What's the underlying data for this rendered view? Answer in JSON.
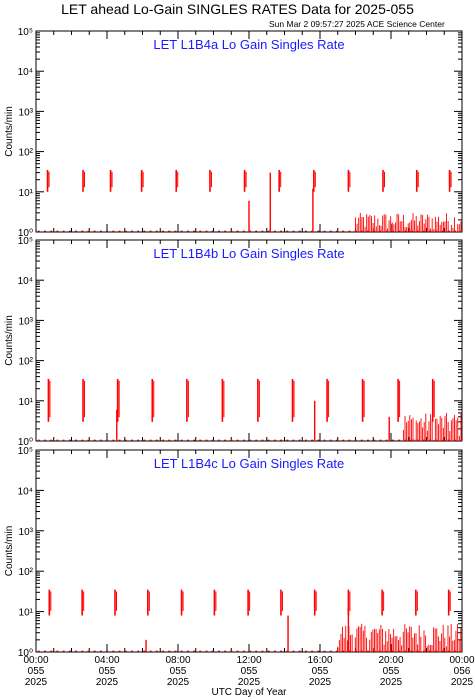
{
  "header": {
    "title": "LET ahead Lo-Gain SINGLES RATES Data for 2025-055",
    "timestamp": "Sun Mar  2 09:57:27 2025 ACE Science Center"
  },
  "colors": {
    "axis": "#000000",
    "data": "#ff0000",
    "label": "#1a1aff"
  },
  "chart_data": [
    {
      "type": "bar",
      "title": "LET L1B4a Lo Gain Singles Rate",
      "ylabel": "Counts/min",
      "yscale": "log",
      "ylim": [
        1,
        100000
      ],
      "yticks": [
        "10⁰",
        "10¹",
        "10²",
        "10³",
        "10⁴",
        "10⁵"
      ],
      "pulses": {
        "hours": [
          0.65,
          2.65,
          4.2,
          5.95,
          7.9,
          9.8,
          11.75,
          13.7,
          15.65,
          17.6,
          19.55,
          21.45,
          23.3
        ],
        "peak": 35,
        "base": 10
      },
      "spikes": [
        {
          "hour": 12.0,
          "value": 6
        },
        {
          "hour": 13.2,
          "value": 30
        },
        {
          "hour": 15.6,
          "value": 12
        }
      ],
      "noise_from_hour": 18.0,
      "noise_max": 3
    },
    {
      "type": "bar",
      "title": "LET L1B4b Lo Gain Singles Rate",
      "ylabel": "Counts/min",
      "yscale": "log",
      "ylim": [
        1,
        100000
      ],
      "yticks": [
        "10⁰",
        "10¹",
        "10²",
        "10³",
        "10⁴",
        "10⁵"
      ],
      "pulses": {
        "hours": [
          0.7,
          2.65,
          4.6,
          6.55,
          8.5,
          10.5,
          12.5,
          14.45,
          16.4,
          18.4,
          20.4,
          22.35
        ],
        "peak": 35,
        "base": 3
      },
      "spikes": [
        {
          "hour": 4.55,
          "value": 6
        },
        {
          "hour": 15.7,
          "value": 10
        },
        {
          "hour": 19.9,
          "value": 4
        }
      ],
      "noise_from_hour": 20.7,
      "noise_max": 5
    },
    {
      "type": "bar",
      "title": "LET L1B4c Lo Gain Singles Rate",
      "ylabel": "Counts/min",
      "yscale": "log",
      "ylim": [
        1,
        100000
      ],
      "yticks": [
        "10⁰",
        "10¹",
        "10²",
        "10³",
        "10⁴",
        "10⁵"
      ],
      "pulses": {
        "hours": [
          0.75,
          2.6,
          4.45,
          6.3,
          8.2,
          10.05,
          11.95,
          13.8,
          15.7,
          17.6,
          19.5,
          21.4,
          23.25
        ],
        "peak": 35,
        "base": 8
      },
      "spikes": [
        {
          "hour": 6.2,
          "value": 2
        },
        {
          "hour": 14.2,
          "value": 8
        },
        {
          "hour": 17.6,
          "value": 12
        }
      ],
      "noise_from_hour": 17.0,
      "noise_max": 5
    }
  ],
  "xaxis": {
    "label": "UTC Day of Year",
    "range_hours": [
      0,
      24
    ],
    "ticks": [
      {
        "hour": 0,
        "lines": [
          "00:00",
          "055",
          "2025"
        ]
      },
      {
        "hour": 4,
        "lines": [
          "04:00",
          "055",
          "2025"
        ]
      },
      {
        "hour": 8,
        "lines": [
          "08:00",
          "055",
          "2025"
        ]
      },
      {
        "hour": 12,
        "lines": [
          "12:00",
          "055",
          "2025"
        ]
      },
      {
        "hour": 16,
        "lines": [
          "16:00",
          "055",
          "2025"
        ]
      },
      {
        "hour": 20,
        "lines": [
          "20:00",
          "055",
          "2025"
        ]
      },
      {
        "hour": 24,
        "lines": [
          "00:00",
          "056",
          "2025"
        ]
      }
    ]
  }
}
